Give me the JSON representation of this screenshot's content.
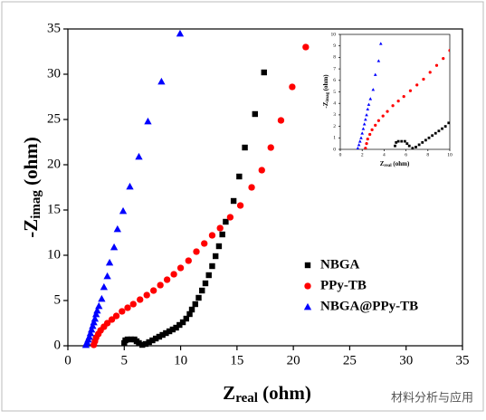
{
  "chart_data": [
    {
      "type": "scatter",
      "xlabel": [
        "Z",
        "real",
        " (ohm)"
      ],
      "ylabel": [
        "-Z",
        "imag",
        " (ohm)"
      ],
      "xlim": [
        0,
        35
      ],
      "ylim": [
        0,
        35
      ],
      "xticks": [
        0,
        5,
        10,
        15,
        20,
        25,
        30,
        35
      ],
      "yticks": [
        0,
        5,
        10,
        15,
        20,
        25,
        30,
        35
      ],
      "legend": "lower right",
      "series": [
        {
          "name": "NBGA",
          "color": "#000000",
          "marker": "square",
          "x": [
            5.0,
            5.1,
            5.3,
            5.6,
            5.9,
            6.1,
            6.3,
            6.6,
            6.9,
            7.2,
            7.5,
            7.8,
            8.1,
            8.4,
            8.7,
            9.0,
            9.3,
            9.6,
            9.9,
            10.2,
            10.5,
            10.8,
            11.0,
            11.3,
            11.6,
            11.9,
            12.2,
            12.5,
            12.8,
            13.1,
            13.4,
            13.7,
            14.0,
            14.7,
            15.2,
            15.7,
            16.6,
            17.4
          ],
          "values": [
            0.3,
            0.6,
            0.7,
            0.7,
            0.7,
            0.5,
            0.3,
            0.1,
            0.2,
            0.4,
            0.6,
            0.8,
            1.0,
            1.2,
            1.4,
            1.6,
            1.8,
            2.0,
            2.3,
            2.6,
            3.0,
            3.5,
            4.0,
            4.6,
            5.3,
            6.1,
            6.9,
            7.8,
            8.8,
            9.9,
            11.0,
            12.3,
            13.7,
            16.0,
            18.7,
            21.9,
            25.6,
            30.2
          ]
        },
        {
          "name": "PPy-TB",
          "color": "#ff0000",
          "marker": "circle",
          "x": [
            2.3,
            2.4,
            2.5,
            2.7,
            2.9,
            3.2,
            3.5,
            3.9,
            4.3,
            4.8,
            5.3,
            5.8,
            6.4,
            7.0,
            7.6,
            8.2,
            8.8,
            9.4,
            10.0,
            10.7,
            11.4,
            12.1,
            12.8,
            13.5,
            14.4,
            15.3,
            16.3,
            17.2,
            18.0,
            18.9,
            19.9,
            21.1
          ],
          "values": [
            0.1,
            0.5,
            0.9,
            1.3,
            1.7,
            2.1,
            2.5,
            2.9,
            3.3,
            3.8,
            4.2,
            4.6,
            5.1,
            5.6,
            6.1,
            6.7,
            7.3,
            7.9,
            8.6,
            9.4,
            10.4,
            11.3,
            12.2,
            13.0,
            14.2,
            15.5,
            17.5,
            19.4,
            21.9,
            24.9,
            28.6,
            33.0
          ]
        },
        {
          "name": "NBGA@PPy-TB",
          "color": "#0000ff",
          "marker": "triangle",
          "x": [
            1.6,
            1.7,
            1.8,
            1.9,
            2.0,
            2.1,
            2.2,
            2.3,
            2.4,
            2.5,
            2.6,
            2.75,
            3.0,
            3.2,
            3.5,
            3.7,
            4.1,
            4.4,
            4.9,
            5.5,
            6.3,
            7.1,
            8.3,
            9.95
          ],
          "values": [
            0.1,
            0.4,
            0.7,
            1.0,
            1.4,
            1.8,
            2.2,
            2.6,
            3.0,
            3.5,
            3.9,
            4.4,
            5.2,
            6.5,
            7.7,
            9.2,
            10.9,
            12.9,
            14.9,
            17.6,
            20.9,
            24.8,
            29.2,
            34.5
          ]
        }
      ]
    },
    {
      "type": "inset",
      "xlabel": [
        "Z",
        "real",
        " (ohm)"
      ],
      "ylabel": [
        "-Z",
        "imag",
        " (ohm)"
      ],
      "xlim": [
        0,
        10
      ],
      "ylim": [
        0,
        10
      ],
      "xticks": [
        0,
        2,
        4,
        6,
        8,
        10
      ],
      "yticks": [
        0,
        1,
        2,
        3,
        4,
        5,
        6,
        7,
        8,
        9,
        10
      ]
    }
  ],
  "watermark": "材料分析与应用"
}
